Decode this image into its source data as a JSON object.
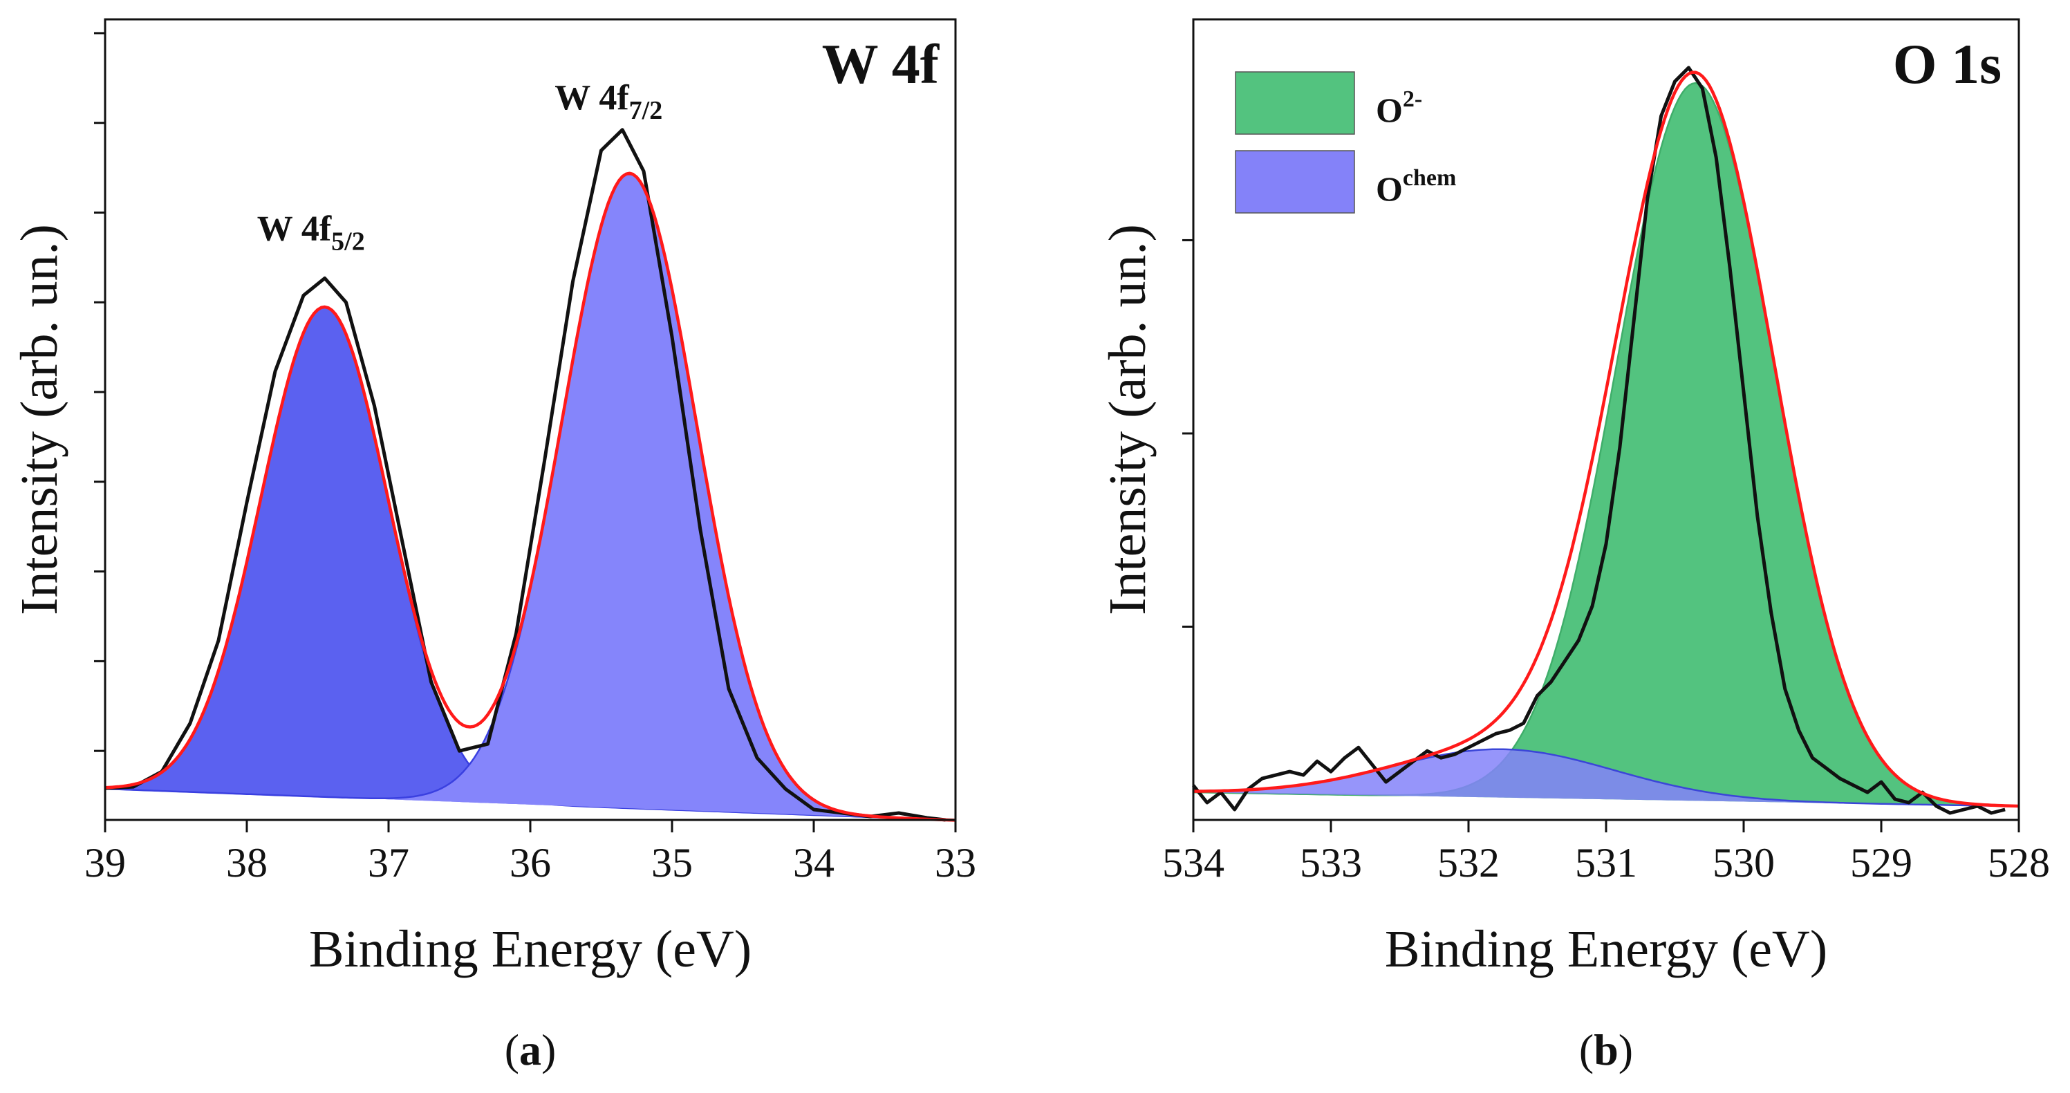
{
  "chart_data": [
    {
      "type": "line",
      "panel": "a",
      "caption": "a",
      "title": "W 4f",
      "xlabel": "Binding Energy (eV)",
      "ylabel": "Intensity (arb. un.)",
      "xlim": [
        39,
        33
      ],
      "x_reversed": true,
      "ylim": [
        -0.04,
        1.12
      ],
      "xticks": [
        39,
        38,
        37,
        36,
        35,
        34,
        33
      ],
      "yticks_unlabeled": [
        0.06,
        0.19,
        0.32,
        0.45,
        0.58,
        0.71,
        0.84,
        0.97,
        1.1
      ],
      "legend": null,
      "colors": {
        "peak1": "#5b61f0",
        "peak2": "#8585fb",
        "envelope": "#ff1a1a",
        "data": "#111111",
        "component_edge": "#3a40e0"
      },
      "peak_labels": [
        {
          "label": "W 4f",
          "sub": "5/2",
          "x": 37.45,
          "y": 0.8
        },
        {
          "label": "W 4f",
          "sub": "7/2",
          "x": 35.35,
          "y": 0.99
        }
      ],
      "background": {
        "x": [
          39,
          33.07
        ],
        "y": [
          0.005,
          -0.04
        ]
      },
      "series": [
        {
          "name": "W 4f5/2",
          "kind": "component",
          "center": 37.45,
          "amplitude": 0.71,
          "fwhm": 1.06,
          "fill": "#5b61f0"
        },
        {
          "name": "W 4f7/2",
          "kind": "component",
          "center": 35.3,
          "amplitude": 0.92,
          "fwhm": 1.12,
          "fill": "#8585fb"
        },
        {
          "name": "fit",
          "kind": "envelope",
          "color": "#ff1a1a"
        },
        {
          "name": "data",
          "kind": "measured",
          "color": "#111111",
          "x": [
            39.0,
            38.8,
            38.6,
            38.4,
            38.2,
            38.0,
            37.8,
            37.6,
            37.45,
            37.3,
            37.1,
            36.9,
            36.7,
            36.5,
            36.3,
            36.1,
            35.9,
            35.7,
            35.5,
            35.35,
            35.2,
            35.0,
            34.8,
            34.6,
            34.4,
            34.2,
            34.0,
            33.8,
            33.6,
            33.4,
            33.2,
            33.07
          ],
          "y": [
            0.006,
            0.008,
            0.03,
            0.1,
            0.22,
            0.42,
            0.61,
            0.72,
            0.745,
            0.71,
            0.56,
            0.36,
            0.16,
            0.06,
            0.07,
            0.23,
            0.48,
            0.74,
            0.93,
            0.96,
            0.9,
            0.66,
            0.38,
            0.15,
            0.05,
            0.005,
            -0.025,
            -0.03,
            -0.035,
            -0.03,
            -0.037,
            -0.04
          ]
        }
      ]
    },
    {
      "type": "line",
      "panel": "b",
      "caption": "b",
      "title": "O 1s",
      "xlabel": "Binding Energy (eV)",
      "ylabel": "Intensity (arb. un.)",
      "xlim": [
        534,
        528
      ],
      "x_reversed": true,
      "ylim": [
        -0.04,
        1.12
      ],
      "xticks": [
        534,
        533,
        532,
        531,
        530,
        529,
        528
      ],
      "yticks_unlabeled": [
        0.24,
        0.52,
        0.8
      ],
      "legend": [
        {
          "label": "O",
          "sup": "2-",
          "color": "#53c37f"
        },
        {
          "label": "O",
          "sup": "chem",
          "color": "#8482f9"
        }
      ],
      "legend_position": "top-left",
      "colors": {
        "o2": "#53c37f",
        "ochem": "#8482f9",
        "overlap": "#4a6cd0",
        "envelope": "#ff1a1a",
        "data": "#111111"
      },
      "background": {
        "x": [
          534,
          528.07
        ],
        "y": [
          0.0,
          -0.02
        ]
      },
      "series": [
        {
          "name": "O2-",
          "kind": "component",
          "center": 530.35,
          "amplitude": 1.04,
          "fwhm": 1.35,
          "fill": "#53c37f"
        },
        {
          "name": "Ochem",
          "kind": "component",
          "center": 531.75,
          "amplitude": 0.07,
          "fwhm": 1.9,
          "fill": "#8482f9"
        },
        {
          "name": "fit",
          "kind": "envelope",
          "color": "#ff1a1a"
        },
        {
          "name": "data",
          "kind": "measured",
          "color": "#111111",
          "x": [
            534.0,
            533.9,
            533.8,
            533.7,
            533.6,
            533.5,
            533.4,
            533.3,
            533.2,
            533.1,
            533.0,
            532.9,
            532.8,
            532.7,
            532.6,
            532.5,
            532.4,
            532.3,
            532.2,
            532.1,
            532.0,
            531.9,
            531.8,
            531.7,
            531.6,
            531.5,
            531.4,
            531.3,
            531.2,
            531.1,
            531.0,
            530.9,
            530.8,
            530.7,
            530.6,
            530.5,
            530.4,
            530.3,
            530.2,
            530.1,
            530.0,
            529.9,
            529.8,
            529.7,
            529.6,
            529.5,
            529.4,
            529.3,
            529.2,
            529.1,
            529.0,
            528.9,
            528.8,
            528.7,
            528.6,
            528.5,
            528.4,
            528.3,
            528.2,
            528.1
          ],
          "y": [
            0.01,
            -0.015,
            0.0,
            -0.025,
            0.005,
            0.02,
            0.025,
            0.03,
            0.025,
            0.045,
            0.03,
            0.05,
            0.065,
            0.04,
            0.015,
            0.03,
            0.045,
            0.06,
            0.05,
            0.055,
            0.065,
            0.075,
            0.085,
            0.09,
            0.1,
            0.14,
            0.16,
            0.19,
            0.22,
            0.27,
            0.36,
            0.5,
            0.68,
            0.86,
            0.98,
            1.03,
            1.05,
            1.02,
            0.92,
            0.76,
            0.58,
            0.4,
            0.26,
            0.15,
            0.09,
            0.05,
            0.035,
            0.02,
            0.01,
            0.0,
            0.015,
            -0.01,
            -0.015,
            0.0,
            -0.02,
            -0.03,
            -0.025,
            -0.02,
            -0.03,
            -0.025
          ]
        }
      ]
    }
  ]
}
